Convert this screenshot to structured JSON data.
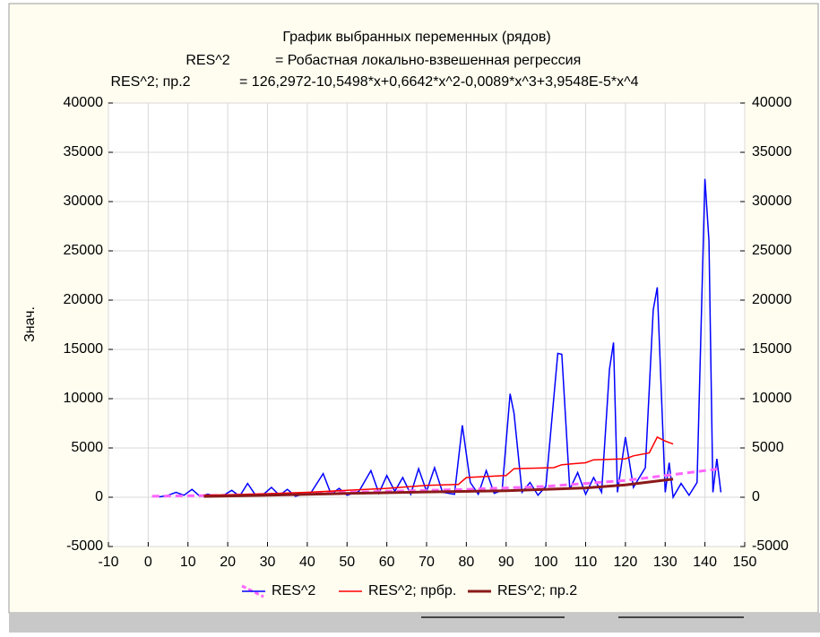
{
  "chart_data": {
    "type": "line",
    "title": "График выбранных переменных (рядов)",
    "subtitles": [
      {
        "label": "RES^2",
        "text": "= Робастная локально-взвешенная регрессия"
      },
      {
        "label": "RES^2; пр.2",
        "text": "= 126,2972-10,5498*x+0,6642*x^2-0,0089*x^3+3,9548E-5*x^4"
      }
    ],
    "y_label": "Знач.",
    "xlim": [
      -10,
      150
    ],
    "xticks": [
      -10,
      0,
      10,
      20,
      30,
      40,
      50,
      60,
      70,
      80,
      90,
      100,
      110,
      120,
      130,
      140,
      150
    ],
    "ylim": [
      -5000,
      40000
    ],
    "yticks": [
      -5000,
      0,
      5000,
      10000,
      15000,
      20000,
      25000,
      30000,
      35000,
      40000
    ],
    "y2lim": [
      -5000,
      40000
    ],
    "y2ticks": [
      -5000,
      0,
      5000,
      10000,
      15000,
      20000,
      25000,
      30000,
      35000,
      40000
    ],
    "grid": true,
    "series": [
      {
        "name": "RES^2",
        "color": "#0000ff",
        "fit_color": "#ff66ff",
        "x": [
          1,
          3,
          5,
          7,
          9,
          11,
          13,
          15,
          17,
          19,
          21,
          23,
          25,
          27,
          29,
          31,
          33,
          35,
          37,
          39,
          41,
          44,
          46,
          48,
          50,
          53,
          56,
          58,
          60,
          62,
          64,
          66,
          68,
          70,
          72,
          74,
          77,
          79,
          81,
          83,
          85,
          87,
          89,
          91,
          92,
          94,
          96,
          98,
          100,
          103,
          104,
          106,
          108,
          110,
          112,
          114,
          116,
          117,
          118,
          120,
          122,
          125,
          127,
          128,
          130,
          131,
          132,
          134,
          136,
          138,
          140,
          141,
          142,
          143,
          144
        ],
        "values": [
          100,
          50,
          200,
          500,
          200,
          800,
          100,
          300,
          100,
          200,
          700,
          100,
          1400,
          200,
          300,
          1000,
          200,
          800,
          100,
          300,
          500,
          2400,
          300,
          900,
          200,
          600,
          2700,
          400,
          2200,
          600,
          2000,
          300,
          2900,
          600,
          3000,
          500,
          300,
          7300,
          1500,
          300,
          2700,
          400,
          700,
          10500,
          8500,
          500,
          1500,
          200,
          1100,
          14600,
          14500,
          800,
          2500,
          300,
          2000,
          500,
          13000,
          15700,
          500,
          6100,
          1000,
          3000,
          19000,
          21300,
          500,
          3500,
          0,
          1400,
          200,
          1500,
          32300,
          26000,
          500,
          3900,
          500
        ],
        "fit_x": [
          1,
          20,
          40,
          60,
          80,
          100,
          120,
          144
        ],
        "fit_values": [
          100,
          200,
          400,
          600,
          800,
          1100,
          1700,
          2900
        ]
      },
      {
        "name": "RES^2; прбр.",
        "color": "#ff0000",
        "x": [
          14,
          20,
          30,
          40,
          50,
          60,
          70,
          78,
          80,
          90,
          92,
          102,
          104,
          110,
          112,
          120,
          122,
          126,
          128,
          130,
          132
        ],
        "values": [
          200,
          250,
          350,
          500,
          700,
          900,
          1200,
          1300,
          2000,
          2200,
          2900,
          3000,
          3300,
          3500,
          3800,
          3900,
          4200,
          4500,
          6100,
          5700,
          5400
        ]
      },
      {
        "name": "RES^2; пр.2",
        "color": "#8b1a1a",
        "x": [
          14,
          30,
          50,
          70,
          90,
          110,
          120,
          132
        ],
        "values": [
          86,
          199,
          394,
          539,
          663,
          947,
          1246,
          1843
        ]
      }
    ]
  }
}
